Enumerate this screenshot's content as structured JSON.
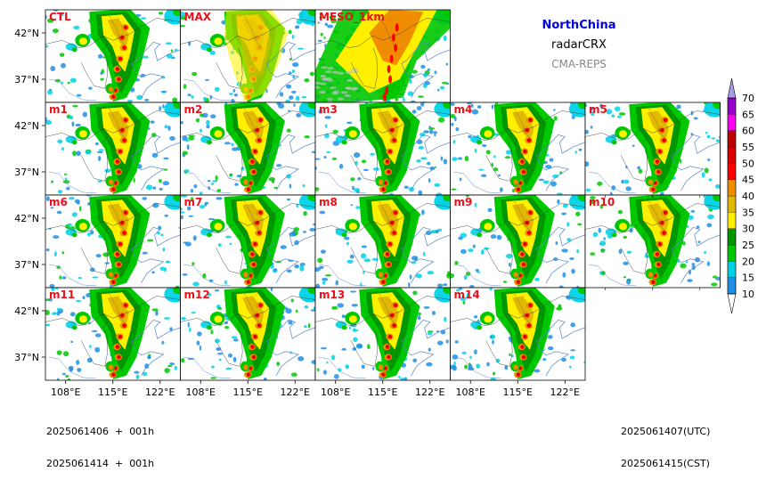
{
  "header": {
    "region": "NorthChina",
    "region_color": "#0000dd",
    "variable": "radarCRX",
    "model": "CMA-REPS",
    "model_color": "#888888"
  },
  "footer": {
    "init_time_utc_line": "2025061406  +  001h",
    "init_time_cst_line": "2025061414  +  001h",
    "valid_utc": "2025061407(UTC)",
    "valid_cst": "2025061415(CST)"
  },
  "chart_data": {
    "type": "heatmap",
    "grid": {
      "rows": [
        [
          "CTL",
          "MAX",
          "MESO_1km"
        ],
        [
          "m1",
          "m2",
          "m3",
          "m4",
          "m5"
        ],
        [
          "m6",
          "m7",
          "m8",
          "m9",
          "m10"
        ],
        [
          "m11",
          "m12",
          "m13",
          "m14"
        ]
      ]
    },
    "x_ticks": [
      "108°E",
      "115°E",
      "122°E"
    ],
    "x_tick_values": [
      108,
      115,
      122
    ],
    "y_ticks": [
      "42°N",
      "37°N"
    ],
    "y_tick_values": [
      42,
      37
    ],
    "xlim": [
      105,
      125
    ],
    "ylim": [
      34.5,
      44.5
    ],
    "colorbar": {
      "levels": [
        10,
        15,
        20,
        25,
        30,
        35,
        40,
        45,
        50,
        55,
        60,
        65,
        70
      ],
      "colors": [
        "#1e8fe6",
        "#00d2e6",
        "#00c800",
        "#009600",
        "#fff000",
        "#e1b900",
        "#f08c00",
        "#ff0000",
        "#dc0000",
        "#be0000",
        "#ff00f0",
        "#9600c8",
        "#a89be6"
      ],
      "extend": "both"
    }
  },
  "colors": {
    "coast": "#5a88c8",
    "border": "#404040",
    "panel_tag": "#e8101a"
  }
}
